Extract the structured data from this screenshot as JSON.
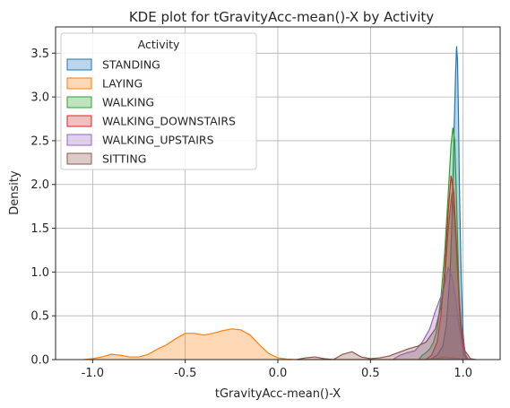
{
  "chart_data": {
    "type": "area",
    "title": "KDE plot for tGravityAcc-mean()-X by Activity",
    "xlabel": "tGravityAcc-mean()-X",
    "ylabel": "Density",
    "xlim": [
      -1.2,
      1.2
    ],
    "ylim": [
      0,
      3.8
    ],
    "xticks": [
      -1.0,
      -0.5,
      0.0,
      0.5,
      1.0
    ],
    "xtick_labels": [
      "-1.0",
      "-0.5",
      "0.0",
      "0.5",
      "1.0"
    ],
    "yticks": [
      0.0,
      0.5,
      1.0,
      1.5,
      2.0,
      2.5,
      3.0,
      3.5
    ],
    "ytick_labels": [
      "0.0",
      "0.5",
      "1.0",
      "1.5",
      "2.0",
      "2.5",
      "3.0",
      "3.5"
    ],
    "grid": true,
    "legend": {
      "title": "Activity",
      "placement": "top-left"
    },
    "series": [
      {
        "name": "STANDING",
        "color": "#1f77b4",
        "points": [
          [
            0.82,
            0
          ],
          [
            0.86,
            0.05
          ],
          [
            0.89,
            0.15
          ],
          [
            0.91,
            0.4
          ],
          [
            0.93,
            1.0
          ],
          [
            0.94,
            1.6
          ],
          [
            0.95,
            2.5
          ],
          [
            0.96,
            3.3
          ],
          [
            0.965,
            3.58
          ],
          [
            0.97,
            3.4
          ],
          [
            0.975,
            2.8
          ],
          [
            0.98,
            2.0
          ],
          [
            0.99,
            0.9
          ],
          [
            1.0,
            0.3
          ],
          [
            1.01,
            0.05
          ],
          [
            1.02,
            0
          ]
        ]
      },
      {
        "name": "LAYING",
        "color": "#ff7f0e",
        "points": [
          [
            -1.05,
            0
          ],
          [
            -1.0,
            0.01
          ],
          [
            -0.95,
            0.03
          ],
          [
            -0.9,
            0.06
          ],
          [
            -0.85,
            0.05
          ],
          [
            -0.8,
            0.03
          ],
          [
            -0.75,
            0.03
          ],
          [
            -0.7,
            0.06
          ],
          [
            -0.65,
            0.12
          ],
          [
            -0.6,
            0.17
          ],
          [
            -0.55,
            0.24
          ],
          [
            -0.5,
            0.3
          ],
          [
            -0.45,
            0.3
          ],
          [
            -0.4,
            0.28
          ],
          [
            -0.35,
            0.3
          ],
          [
            -0.3,
            0.33
          ],
          [
            -0.25,
            0.35
          ],
          [
            -0.2,
            0.34
          ],
          [
            -0.15,
            0.28
          ],
          [
            -0.1,
            0.17
          ],
          [
            -0.05,
            0.07
          ],
          [
            0.0,
            0.02
          ],
          [
            0.05,
            0.005
          ],
          [
            0.1,
            0
          ],
          [
            0.2,
            0
          ],
          [
            0.5,
            0
          ],
          [
            0.8,
            0
          ],
          [
            0.85,
            0.01
          ],
          [
            0.9,
            0.03
          ],
          [
            0.95,
            0.02
          ],
          [
            1.0,
            0
          ]
        ]
      },
      {
        "name": "WALKING",
        "color": "#2ca02c",
        "points": [
          [
            0.76,
            0
          ],
          [
            0.78,
            0.05
          ],
          [
            0.8,
            0.08
          ],
          [
            0.82,
            0.12
          ],
          [
            0.84,
            0.2
          ],
          [
            0.86,
            0.35
          ],
          [
            0.88,
            0.7
          ],
          [
            0.9,
            1.2
          ],
          [
            0.92,
            1.9
          ],
          [
            0.935,
            2.45
          ],
          [
            0.945,
            2.65
          ],
          [
            0.955,
            2.5
          ],
          [
            0.965,
            1.8
          ],
          [
            0.975,
            1.0
          ],
          [
            0.985,
            0.4
          ],
          [
            1.0,
            0.08
          ],
          [
            1.02,
            0
          ]
        ]
      },
      {
        "name": "WALKING_DOWNSTAIRS",
        "color": "#d62728",
        "points": [
          [
            0.8,
            0
          ],
          [
            0.83,
            0.05
          ],
          [
            0.86,
            0.2
          ],
          [
            0.88,
            0.5
          ],
          [
            0.9,
            1.0
          ],
          [
            0.92,
            1.7
          ],
          [
            0.935,
            2.1
          ],
          [
            0.95,
            1.9
          ],
          [
            0.965,
            1.3
          ],
          [
            0.98,
            0.6
          ],
          [
            1.0,
            0.15
          ],
          [
            1.02,
            0.01
          ],
          [
            1.04,
            0
          ]
        ]
      },
      {
        "name": "WALKING_UPSTAIRS",
        "color": "#9467bd",
        "points": [
          [
            0.62,
            0
          ],
          [
            0.66,
            0.05
          ],
          [
            0.7,
            0.08
          ],
          [
            0.74,
            0.1
          ],
          [
            0.78,
            0.2
          ],
          [
            0.82,
            0.35
          ],
          [
            0.85,
            0.55
          ],
          [
            0.88,
            0.72
          ],
          [
            0.9,
            0.85
          ],
          [
            0.92,
            1.05
          ],
          [
            0.94,
            0.95
          ],
          [
            0.96,
            0.7
          ],
          [
            0.98,
            0.35
          ],
          [
            1.0,
            0.1
          ],
          [
            1.03,
            0
          ]
        ]
      },
      {
        "name": "SITTING",
        "color": "#8c564b",
        "points": [
          [
            0.1,
            0
          ],
          [
            0.15,
            0.02
          ],
          [
            0.2,
            0.03
          ],
          [
            0.25,
            0.01
          ],
          [
            0.3,
            0
          ],
          [
            0.35,
            0.06
          ],
          [
            0.4,
            0.09
          ],
          [
            0.45,
            0.03
          ],
          [
            0.5,
            0.01
          ],
          [
            0.55,
            0.02
          ],
          [
            0.6,
            0.04
          ],
          [
            0.65,
            0.08
          ],
          [
            0.7,
            0.12
          ],
          [
            0.75,
            0.15
          ],
          [
            0.8,
            0.2
          ],
          [
            0.85,
            0.35
          ],
          [
            0.88,
            0.6
          ],
          [
            0.9,
            0.9
          ],
          [
            0.92,
            1.5
          ],
          [
            0.94,
            1.9
          ],
          [
            0.955,
            1.6
          ],
          [
            0.97,
            1.0
          ],
          [
            0.99,
            0.4
          ],
          [
            1.01,
            0.1
          ],
          [
            1.04,
            0.01
          ],
          [
            1.07,
            0
          ]
        ]
      }
    ]
  }
}
